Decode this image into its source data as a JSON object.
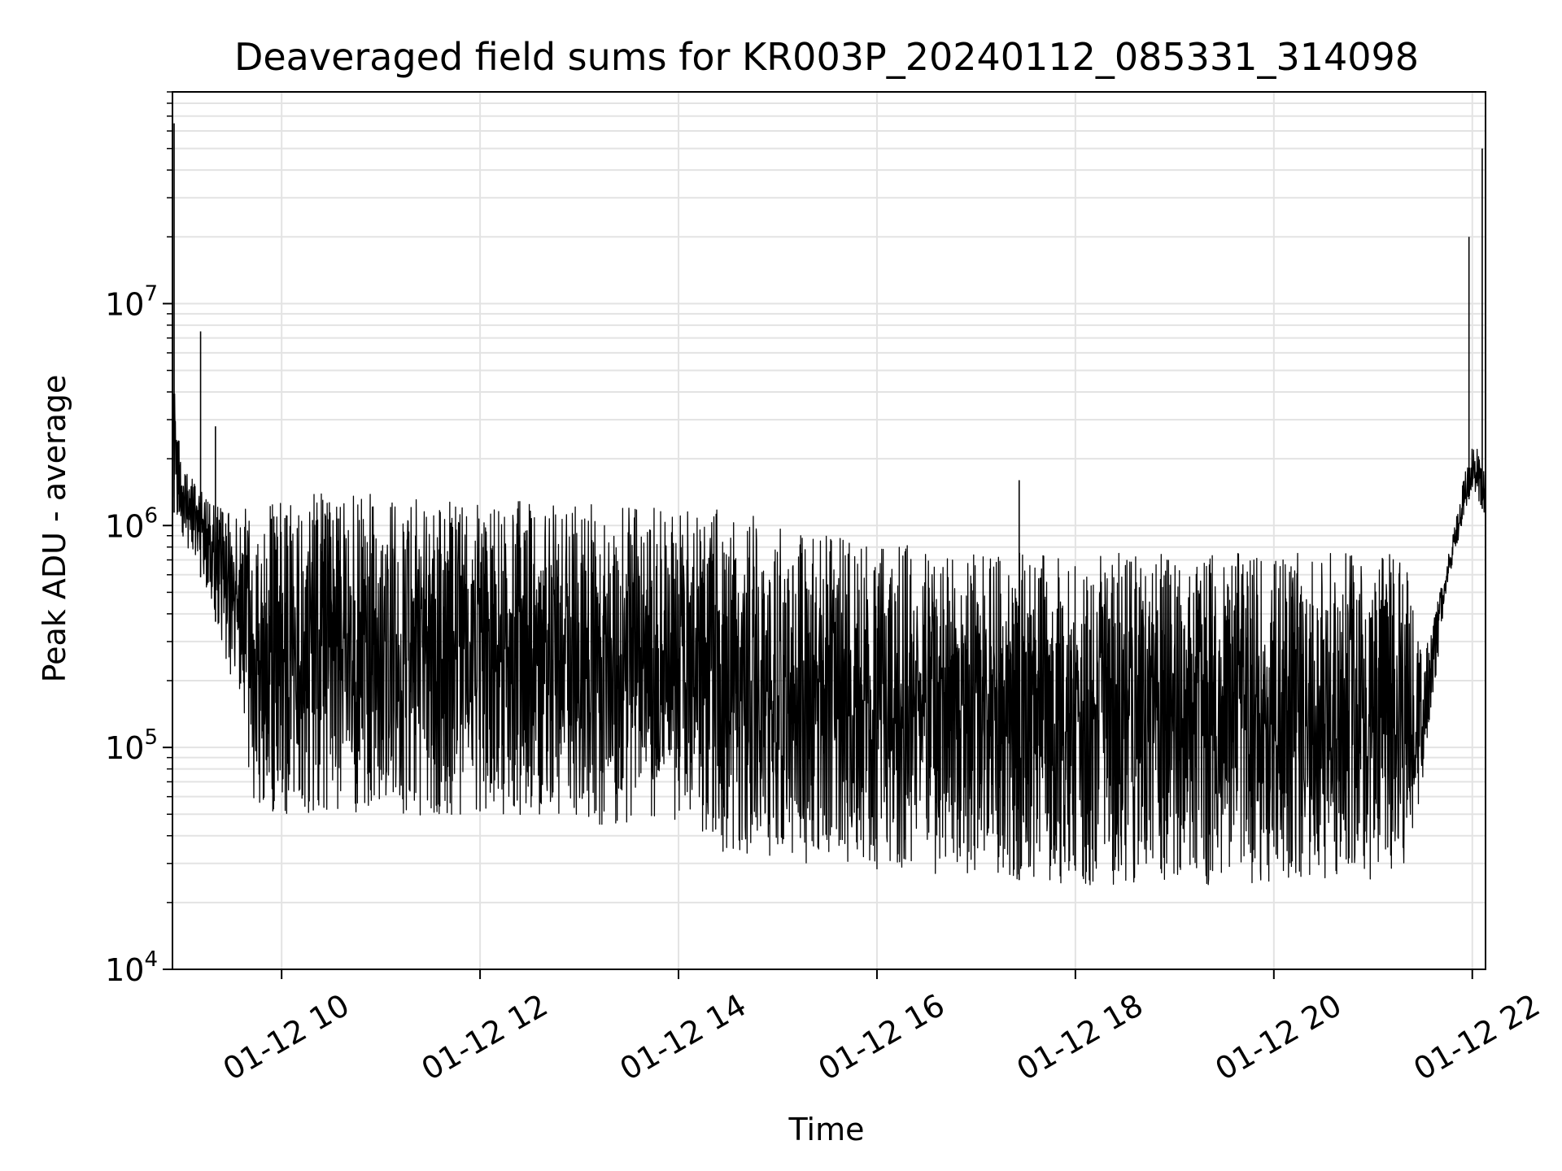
{
  "chart_data": {
    "type": "line",
    "title": "Deaveraged field sums for KR003P_20240112_085331_314098",
    "xlabel": "Time",
    "ylabel": "Peak ADU - average",
    "yscale": "log",
    "ylim": [
      10000,
      90000000
    ],
    "xlim": [
      "01-12 08:54",
      "01-12 22:08"
    ],
    "grid": true,
    "line_color": "#000000",
    "grid_color": "#e3e3e3",
    "x_ticks": [
      "01-12 10",
      "01-12 12",
      "01-12 14",
      "01-12 16",
      "01-12 18",
      "01-12 20",
      "01-12 22"
    ],
    "y_ticks": [
      {
        "value": 10000,
        "base": "10",
        "exp": "4"
      },
      {
        "value": 100000,
        "base": "10",
        "exp": "5"
      },
      {
        "value": 1000000,
        "base": "10",
        "exp": "6"
      },
      {
        "value": 10000000,
        "base": "10",
        "exp": "7"
      }
    ],
    "series_envelope": {
      "time": [
        "01-12 08:54",
        "01-12 09:00",
        "01-12 09:15",
        "01-12 09:30",
        "01-12 09:45",
        "01-12 10:00",
        "01-12 10:30",
        "01-12 11:00",
        "01-12 11:30",
        "01-12 12:00",
        "01-12 12:30",
        "01-12 13:00",
        "01-12 13:30",
        "01-12 14:00",
        "01-12 14:30",
        "01-12 15:00",
        "01-12 15:30",
        "01-12 16:00",
        "01-12 16:30",
        "01-12 17:00",
        "01-12 17:30",
        "01-12 18:00",
        "01-12 18:30",
        "01-12 19:00",
        "01-12 19:30",
        "01-12 20:00",
        "01-12 20:30",
        "01-12 21:00",
        "01-12 21:20",
        "01-12 21:30",
        "01-12 21:45",
        "01-12 22:00",
        "01-12 22:08"
      ],
      "upper": [
        5000000,
        1900000,
        1300000,
        1200000,
        1250000,
        1350000,
        1400000,
        1400000,
        1350000,
        1300000,
        1300000,
        1250000,
        1250000,
        1250000,
        1200000,
        1050000,
        950000,
        850000,
        800000,
        800000,
        750000,
        750000,
        750000,
        750000,
        750000,
        750000,
        750000,
        750000,
        750000,
        250000,
        700000,
        2500000,
        1800000
      ],
      "lower": [
        1200000,
        900000,
        500000,
        200000,
        50000,
        50000,
        50000,
        48000,
        48000,
        48000,
        48000,
        45000,
        45000,
        45000,
        32000,
        32000,
        28000,
        28000,
        27000,
        27000,
        25000,
        24000,
        24000,
        24000,
        24000,
        24000,
        25000,
        25000,
        25000,
        70000,
        550000,
        1500000,
        1100000
      ]
    },
    "spikes": [
      {
        "time": "01-12 08:55",
        "value": 65000000
      },
      {
        "time": "01-12 09:11",
        "value": 7500000
      },
      {
        "time": "01-12 09:20",
        "value": 2800000
      },
      {
        "time": "01-12 17:26",
        "value": 1600000
      },
      {
        "time": "01-12 21:58",
        "value": 20000000
      },
      {
        "time": "01-12 22:06",
        "value": 50000000
      }
    ]
  }
}
